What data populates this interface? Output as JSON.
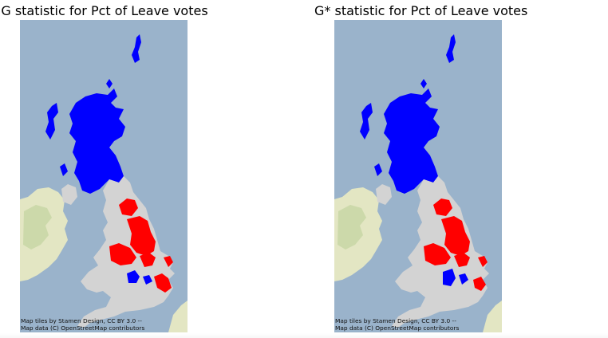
{
  "maps": [
    {
      "title": "G statistic for Pct of Leave votes",
      "attribution": [
        "Map tiles by Stamen Design, CC BY 3.0 --",
        "Map data (C) OpenStreetMap contributors"
      ]
    },
    {
      "title": "G* statistic for Pct of Leave votes",
      "attribution": [
        "Map tiles by Stamen Design, CC BY 3.0 --",
        "Map data (C) OpenStreetMap contributors"
      ]
    }
  ],
  "colors": {
    "sea": "#9ab3cb",
    "land_tile": "#e3e6c3",
    "terrain_green": "#c6d6a4",
    "not_significant": "#d3d3d3",
    "hot_spot": "#ff0000",
    "cold_spot": "#0000ff"
  }
}
